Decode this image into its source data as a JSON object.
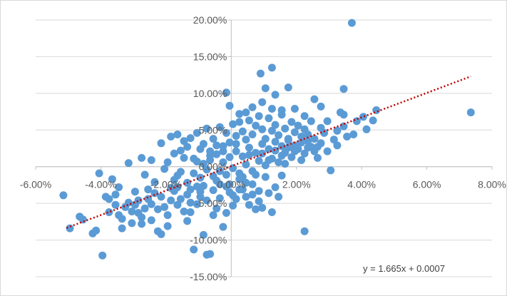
{
  "chart_data": {
    "type": "scatter",
    "title": "",
    "xlabel": "",
    "ylabel": "",
    "xlim": [
      -0.06,
      0.08
    ],
    "ylim": [
      -0.15,
      0.2
    ],
    "x_ticks": [
      -0.06,
      -0.04,
      -0.02,
      0.0,
      0.02,
      0.04,
      0.06,
      0.08
    ],
    "y_ticks": [
      -0.15,
      -0.1,
      -0.05,
      0.0,
      0.05,
      0.1,
      0.15,
      0.2
    ],
    "x_tick_labels": [
      "-6.00%",
      "-4.00%",
      "-2.00%",
      "0.00%",
      "2.00%",
      "4.00%",
      "6.00%",
      "8.00%"
    ],
    "y_tick_labels": [
      "-15.00%",
      "-10.00%",
      "-5.00%",
      "0.00%",
      "5.00%",
      "10.00%",
      "15.00%",
      "20.00%"
    ],
    "grid": "horizontal",
    "marker_color": "#5b9bd5",
    "trendline": {
      "type": "linear",
      "slope": 1.665,
      "intercept": 0.0007,
      "color": "#c00000",
      "style": "dotted",
      "x_range": [
        -0.0505,
        0.0735
      ],
      "equation_label": "y = 1.665x + 0.0007"
    },
    "series": [
      {
        "points": [
          [
            0.037,
            0.196
          ],
          [
            0.0735,
            0.074
          ],
          [
            0.0445,
            0.077
          ],
          [
            0.0345,
            0.106
          ],
          [
            0.0125,
            0.135
          ],
          [
            0.009,
            0.127
          ],
          [
            -0.0015,
            0.101
          ],
          [
            0.0175,
            0.108
          ],
          [
            0.0105,
            0.107
          ],
          [
            0.0135,
            0.098
          ],
          [
            0.0095,
            0.088
          ],
          [
            0.0195,
            0.079
          ],
          [
            0.0045,
            0.074
          ],
          [
            0.0025,
            0.072
          ],
          [
            0.0255,
            0.092
          ],
          [
            0.0275,
            0.082
          ],
          [
            0.0335,
            0.074
          ],
          [
            0.0345,
            0.071
          ],
          [
            0.0405,
            0.068
          ],
          [
            0.0385,
            0.062
          ],
          [
            -0.0005,
            0.083
          ],
          [
            0.0065,
            0.081
          ],
          [
            0.0125,
            0.079
          ],
          [
            0.0155,
            0.077
          ],
          [
            0.0225,
            0.069
          ],
          [
            0.0295,
            0.062
          ],
          [
            0.0345,
            0.055
          ],
          [
            0.0415,
            0.051
          ],
          [
            0.0375,
            0.044
          ],
          [
            0.0325,
            0.029
          ],
          [
            0.0305,
            -0.005
          ],
          [
            0.0225,
            -0.088
          ],
          [
            0.0435,
            0.063
          ],
          [
            -0.0515,
            -0.039
          ],
          [
            -0.0495,
            -0.084
          ],
          [
            -0.0465,
            -0.068
          ],
          [
            -0.0455,
            -0.072
          ],
          [
            -0.0425,
            -0.091
          ],
          [
            -0.0415,
            -0.087
          ],
          [
            -0.0405,
            -0.009
          ],
          [
            -0.0395,
            -0.121
          ],
          [
            -0.0385,
            -0.041
          ],
          [
            -0.0375,
            -0.062
          ],
          [
            -0.0365,
            -0.017
          ],
          [
            -0.0355,
            -0.038
          ],
          [
            -0.0345,
            -0.028
          ],
          [
            -0.0335,
            -0.084
          ],
          [
            -0.0325,
            -0.055
          ],
          [
            -0.0315,
            0.005
          ],
          [
            -0.0305,
            -0.077
          ],
          [
            -0.0295,
            -0.052
          ],
          [
            -0.0285,
            -0.063
          ],
          [
            -0.0275,
            -0.069
          ],
          [
            -0.0265,
            -0.011
          ],
          [
            -0.0255,
            -0.044
          ],
          [
            -0.0245,
            -0.073
          ],
          [
            -0.0235,
            -0.021
          ],
          [
            -0.0225,
            -0.088
          ],
          [
            -0.0215,
            -0.092
          ],
          [
            -0.0205,
            -0.055
          ],
          [
            -0.0195,
            -0.081
          ],
          [
            -0.0185,
            -0.046
          ],
          [
            -0.0175,
            -0.033
          ],
          [
            -0.0165,
            -0.012
          ],
          [
            -0.0155,
            0.022
          ],
          [
            -0.0145,
            -0.061
          ],
          [
            -0.0135,
            -0.074
          ],
          [
            -0.0125,
            -0.049
          ],
          [
            -0.0115,
            -0.113
          ],
          [
            -0.0105,
            -0.027
          ],
          [
            -0.0095,
            -0.041
          ],
          [
            -0.0085,
            -0.093
          ],
          [
            -0.0075,
            -0.12
          ],
          [
            -0.0065,
            -0.119
          ],
          [
            -0.0055,
            -0.066
          ],
          [
            -0.0045,
            -0.057
          ],
          [
            -0.0035,
            -0.024
          ],
          [
            -0.0025,
            -0.082
          ],
          [
            -0.0015,
            -0.063
          ],
          [
            -0.0005,
            -0.035
          ],
          [
            0.0005,
            -0.053
          ],
          [
            0.0015,
            -0.044
          ],
          [
            0.0025,
            -0.017
          ],
          [
            0.0035,
            -0.031
          ],
          [
            0.0045,
            -0.022
          ],
          [
            0.0055,
            -0.052
          ],
          [
            0.0065,
            -0.038
          ],
          [
            0.0075,
            -0.058
          ],
          [
            0.0085,
            -0.047
          ],
          [
            0.0095,
            -0.056
          ],
          [
            0.0105,
            -0.014
          ],
          [
            0.0115,
            -0.036
          ],
          [
            0.0125,
            -0.062
          ],
          [
            0.0135,
            -0.028
          ],
          [
            0.0145,
            -0.041
          ],
          [
            0.0155,
            -0.012
          ],
          [
            0.0165,
            0.004
          ],
          [
            -0.0275,
            0.012
          ],
          [
            -0.0245,
            0.009
          ],
          [
            -0.0215,
            0.032
          ],
          [
            -0.0205,
            -0.003
          ],
          [
            -0.0185,
            0.041
          ],
          [
            -0.0175,
            0.018
          ],
          [
            -0.0165,
            0.044
          ],
          [
            -0.0145,
            0.035
          ],
          [
            -0.0135,
            0.027
          ],
          [
            -0.0125,
            0.039
          ],
          [
            -0.0115,
            0.011
          ],
          [
            -0.0105,
            0.046
          ],
          [
            -0.0095,
            0.024
          ],
          [
            -0.0085,
            0.031
          ],
          [
            -0.0075,
            0.052
          ],
          [
            -0.0065,
            0.015
          ],
          [
            -0.0055,
            0.038
          ],
          [
            -0.0045,
            0.029
          ],
          [
            -0.0035,
            0.054
          ],
          [
            -0.0025,
            0.021
          ],
          [
            -0.0015,
            0.046
          ],
          [
            -0.0005,
            0.033
          ],
          [
            0.0005,
            0.058
          ],
          [
            0.0015,
            0.042
          ],
          [
            0.0025,
            0.061
          ],
          [
            0.0035,
            0.048
          ],
          [
            0.0045,
            0.037
          ],
          [
            0.0055,
            0.063
          ],
          [
            0.0065,
            0.044
          ],
          [
            0.0075,
            0.056
          ],
          [
            0.0085,
            0.069
          ],
          [
            0.0095,
            0.051
          ],
          [
            0.0105,
            0.038
          ],
          [
            0.0115,
            0.066
          ],
          [
            0.0125,
            0.049
          ],
          [
            0.0135,
            0.057
          ],
          [
            0.0145,
            0.043
          ],
          [
            0.0155,
            0.071
          ],
          [
            0.0165,
            0.052
          ],
          [
            0.0175,
            0.038
          ],
          [
            0.0185,
            0.061
          ],
          [
            0.0195,
            0.047
          ],
          [
            0.0205,
            0.056
          ],
          [
            0.0215,
            0.033
          ],
          [
            0.0225,
            0.051
          ],
          [
            0.0235,
            0.044
          ],
          [
            0.0245,
            0.062
          ],
          [
            0.0255,
            0.038
          ],
          [
            0.0265,
            0.027
          ],
          [
            0.0275,
            0.053
          ],
          [
            0.0285,
            0.046
          ],
          [
            0.0295,
            0.021
          ],
          [
            0.0315,
            0.037
          ],
          [
            0.0325,
            0.049
          ],
          [
            0.0355,
            0.041
          ],
          [
            -0.0175,
            -0.018
          ],
          [
            -0.0155,
            -0.007
          ],
          [
            -0.0135,
            -0.022
          ],
          [
            -0.0115,
            -0.009
          ],
          [
            -0.0095,
            -0.015
          ],
          [
            -0.0075,
            -0.004
          ],
          [
            -0.0055,
            -0.013
          ],
          [
            -0.0035,
            -0.006
          ],
          [
            -0.0015,
            -0.011
          ],
          [
            0.0005,
            -0.002
          ],
          [
            0.0025,
            -0.009
          ],
          [
            0.0045,
            0.003
          ],
          [
            0.0065,
            -0.006
          ],
          [
            0.0085,
            0.008
          ],
          [
            0.0105,
            0.002
          ],
          [
            0.0125,
            0.011
          ],
          [
            0.0145,
            0.006
          ],
          [
            0.0165,
            0.019
          ],
          [
            0.0185,
            0.013
          ],
          [
            0.0205,
            0.024
          ],
          [
            0.0225,
            0.018
          ],
          [
            0.0245,
            0.027
          ],
          [
            0.0265,
            0.012
          ],
          [
            -0.0085,
            0.004
          ],
          [
            -0.0065,
            0.009
          ],
          [
            -0.0045,
            0.017
          ],
          [
            -0.0025,
            0.006
          ],
          [
            -0.0005,
            0.013
          ],
          [
            0.0015,
            0.021
          ],
          [
            0.0035,
            0.014
          ],
          [
            0.0055,
            0.026
          ],
          [
            0.0075,
            0.019
          ],
          [
            0.0095,
            0.031
          ],
          [
            0.0115,
            0.024
          ],
          [
            0.0135,
            0.034
          ],
          [
            0.0155,
            0.028
          ],
          [
            0.0175,
            0.036
          ],
          [
            0.0195,
            0.029
          ],
          [
            0.0215,
            0.041
          ],
          [
            0.0235,
            0.035
          ],
          [
            -0.0195,
            0.006
          ],
          [
            -0.0165,
            -0.028
          ],
          [
            -0.0145,
            0.012
          ],
          [
            -0.0125,
            -0.031
          ],
          [
            -0.0105,
            0.007
          ],
          [
            -0.0085,
            -0.026
          ],
          [
            -0.0065,
            0.021
          ],
          [
            -0.0045,
            -0.019
          ],
          [
            -0.0025,
            0.028
          ],
          [
            -0.0005,
            -0.024
          ],
          [
            0.0015,
            0.031
          ],
          [
            0.0035,
            -0.014
          ],
          [
            0.0055,
            0.016
          ],
          [
            0.0075,
            -0.011
          ],
          [
            0.0095,
            0.018
          ],
          [
            0.0115,
            0.009
          ],
          [
            0.0135,
            0.022
          ],
          [
            0.0155,
            0.015
          ],
          [
            0.0175,
            0.026
          ],
          [
            0.0195,
            0.021
          ],
          [
            0.0215,
            0.009
          ],
          [
            0.0235,
            0.026
          ],
          [
            0.0255,
            0.021
          ],
          [
            0.0275,
            0.032
          ],
          [
            -0.0235,
            -0.036
          ],
          [
            -0.0225,
            -0.058
          ],
          [
            -0.0215,
            -0.041
          ],
          [
            -0.0195,
            -0.066
          ],
          [
            -0.0185,
            -0.029
          ],
          [
            -0.0165,
            -0.052
          ],
          [
            -0.0155,
            -0.044
          ],
          [
            -0.0135,
            -0.038
          ],
          [
            -0.0125,
            -0.062
          ],
          [
            -0.0105,
            -0.051
          ],
          [
            -0.0095,
            -0.034
          ],
          [
            -0.0075,
            -0.046
          ],
          [
            -0.0055,
            -0.032
          ],
          [
            -0.0035,
            -0.043
          ],
          [
            -0.0015,
            -0.027
          ],
          [
            0.0005,
            -0.039
          ],
          [
            0.0025,
            -0.031
          ],
          [
            0.0045,
            -0.041
          ],
          [
            0.0065,
            -0.024
          ],
          [
            0.0085,
            -0.033
          ],
          [
            -0.0295,
            -0.034
          ],
          [
            -0.0285,
            -0.046
          ],
          [
            -0.0265,
            -0.057
          ],
          [
            -0.0255,
            -0.031
          ],
          [
            -0.0245,
            -0.051
          ],
          [
            -0.0275,
            -0.078
          ],
          [
            -0.0305,
            -0.061
          ],
          [
            -0.0335,
            -0.071
          ],
          [
            -0.0355,
            -0.052
          ],
          [
            -0.0375,
            -0.044
          ],
          [
            -0.0345,
            -0.066
          ],
          [
            -0.0315,
            -0.049
          ]
        ]
      }
    ]
  }
}
